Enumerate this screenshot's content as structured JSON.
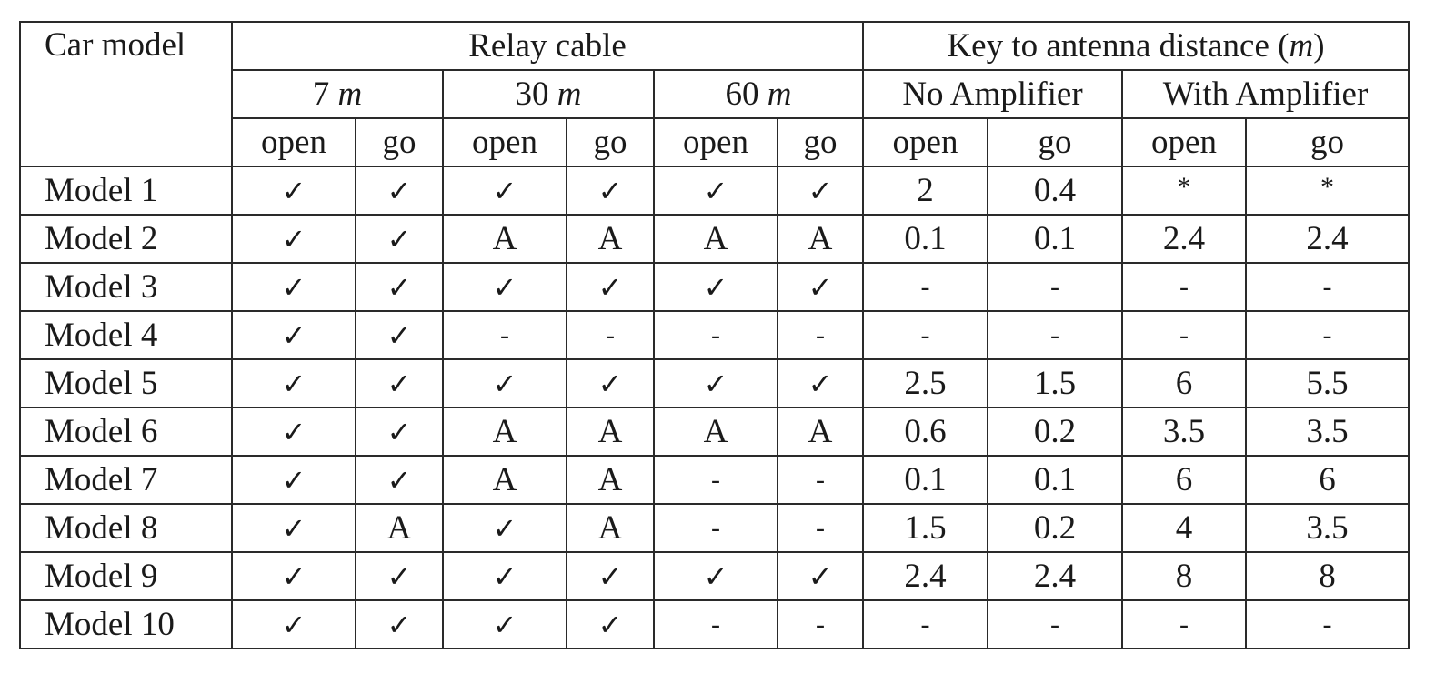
{
  "table": {
    "corner_label": "Car model",
    "relay_group_label": "Relay cable",
    "key_group": {
      "label_prefix": "Key to antenna distance (",
      "unit": "m",
      "label_suffix": ")"
    },
    "cable_lengths": [
      {
        "value": "7",
        "unit": "m"
      },
      {
        "value": "30",
        "unit": "m"
      },
      {
        "value": "60",
        "unit": "m"
      }
    ],
    "amplifier_labels": [
      "No Amplifier",
      "With Amplifier"
    ],
    "sub_headers": [
      "open",
      "go",
      "open",
      "go",
      "open",
      "go",
      "open",
      "go",
      "open",
      "go"
    ],
    "rows": [
      {
        "model": "Model 1",
        "cells": [
          "✓",
          "✓",
          "✓",
          "✓",
          "✓",
          "✓",
          "2",
          "0.4",
          "*",
          "*"
        ]
      },
      {
        "model": "Model 2",
        "cells": [
          "✓",
          "✓",
          "A",
          "A",
          "A",
          "A",
          "0.1",
          "0.1",
          "2.4",
          "2.4"
        ]
      },
      {
        "model": "Model 3",
        "cells": [
          "✓",
          "✓",
          "✓",
          "✓",
          "✓",
          "✓",
          "-",
          "-",
          "-",
          "-"
        ]
      },
      {
        "model": "Model 4",
        "cells": [
          "✓",
          "✓",
          "-",
          "-",
          "-",
          "-",
          "-",
          "-",
          "-",
          "-"
        ]
      },
      {
        "model": "Model 5",
        "cells": [
          "✓",
          "✓",
          "✓",
          "✓",
          "✓",
          "✓",
          "2.5",
          "1.5",
          "6",
          "5.5"
        ]
      },
      {
        "model": "Model 6",
        "cells": [
          "✓",
          "✓",
          "A",
          "A",
          "A",
          "A",
          "0.6",
          "0.2",
          "3.5",
          "3.5"
        ]
      },
      {
        "model": "Model 7",
        "cells": [
          "✓",
          "✓",
          "A",
          "A",
          "-",
          "-",
          "0.1",
          "0.1",
          "6",
          "6"
        ]
      },
      {
        "model": "Model 8",
        "cells": [
          "✓",
          "A",
          "✓",
          "A",
          "-",
          "-",
          "1.5",
          "0.2",
          "4",
          "3.5"
        ]
      },
      {
        "model": "Model 9",
        "cells": [
          "✓",
          "✓",
          "✓",
          "✓",
          "✓",
          "✓",
          "2.4",
          "2.4",
          "8",
          "8"
        ]
      },
      {
        "model": "Model 10",
        "cells": [
          "✓",
          "✓",
          "✓",
          "✓",
          "-",
          "-",
          "-",
          "-",
          "-",
          "-"
        ]
      }
    ]
  }
}
